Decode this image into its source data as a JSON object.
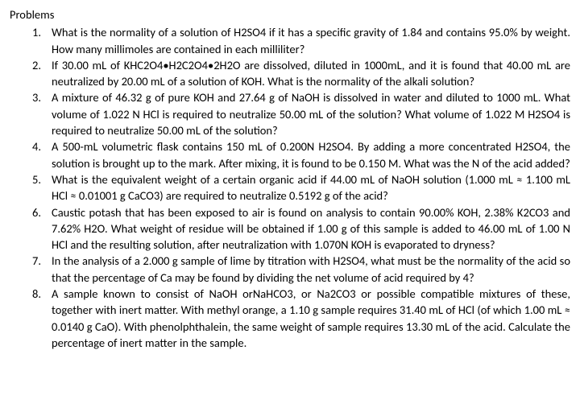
{
  "heading": "Problems",
  "items": [
    {
      "n": "1.",
      "text": "What is the normality of a solution of H2SO4 if it has a specific gravity of 1.84 and contains 95.0% by weight. How many millimoles are contained in each milliliter?"
    },
    {
      "n": "2.",
      "text": "If 30.00 mL of KHC2O4•H2C2O4•2H2O are dissolved, diluted in 1000mL, and it is found that 40.00 mL are neutralized by 20.00 mL of a solution of KOH. What is the normality of the alkali solution?"
    },
    {
      "n": "3.",
      "text": "A mixture of 46.32 g of pure KOH and 27.64 g of NaOH is dissolved in water and diluted to 1000 mL. What volume of 1.022 N HCl is required to neutralize 50.00 mL of the solution? What volume of 1.022 M H2SO4 is required to neutralize 50.00 mL of the solution?"
    },
    {
      "n": "4.",
      "text": "A 500-mL volumetric flask contains 150 mL of 0.200N H2SO4. By adding a more concentrated H2SO4, the solution is brought up to the mark. After mixing, it is found to be 0.150 M. What was the N of the acid added?"
    },
    {
      "n": "5.",
      "text": "What is the equivalent weight of a certain organic acid if 44.00 mL of NaOH solution (1.000 mL ≈ 1.100 mL HCl ≈ 0.01001 g CaCO3) are required to neutralize 0.5192 g of the acid?"
    },
    {
      "n": "6.",
      "text": "Caustic potash that has been exposed to air is found on analysis to contain 90.00% KOH, 2.38% K2CO3 and 7.62% H2O. What weight of residue will be obtained if 1.00 g of this sample is added to 46.00 mL of 1.00 N HCl and the resulting solution, after neutralization with 1.070N KOH is evaporated to dryness?"
    },
    {
      "n": "7.",
      "text": "In the analysis of a 2.000 g sample of lime by titration with H2SO4, what must be the normality of the acid so that the percentage of Ca may be found by dividing the net volume of acid required by 4?"
    },
    {
      "n": "8.",
      "text": "A sample known to consist of NaOH orNaHCO3, or Na2CO3 or possible compatible mixtures of these, together with inert matter. With methyl orange, a 1.10 g sample requires 31.40 mL of HCl (of which 1.00 mL ≈ 0.0140 g CaO). With phenolphthalein, the same weight of sample requires 13.30 mL of the acid. Calculate the percentage of inert matter in the sample."
    }
  ]
}
